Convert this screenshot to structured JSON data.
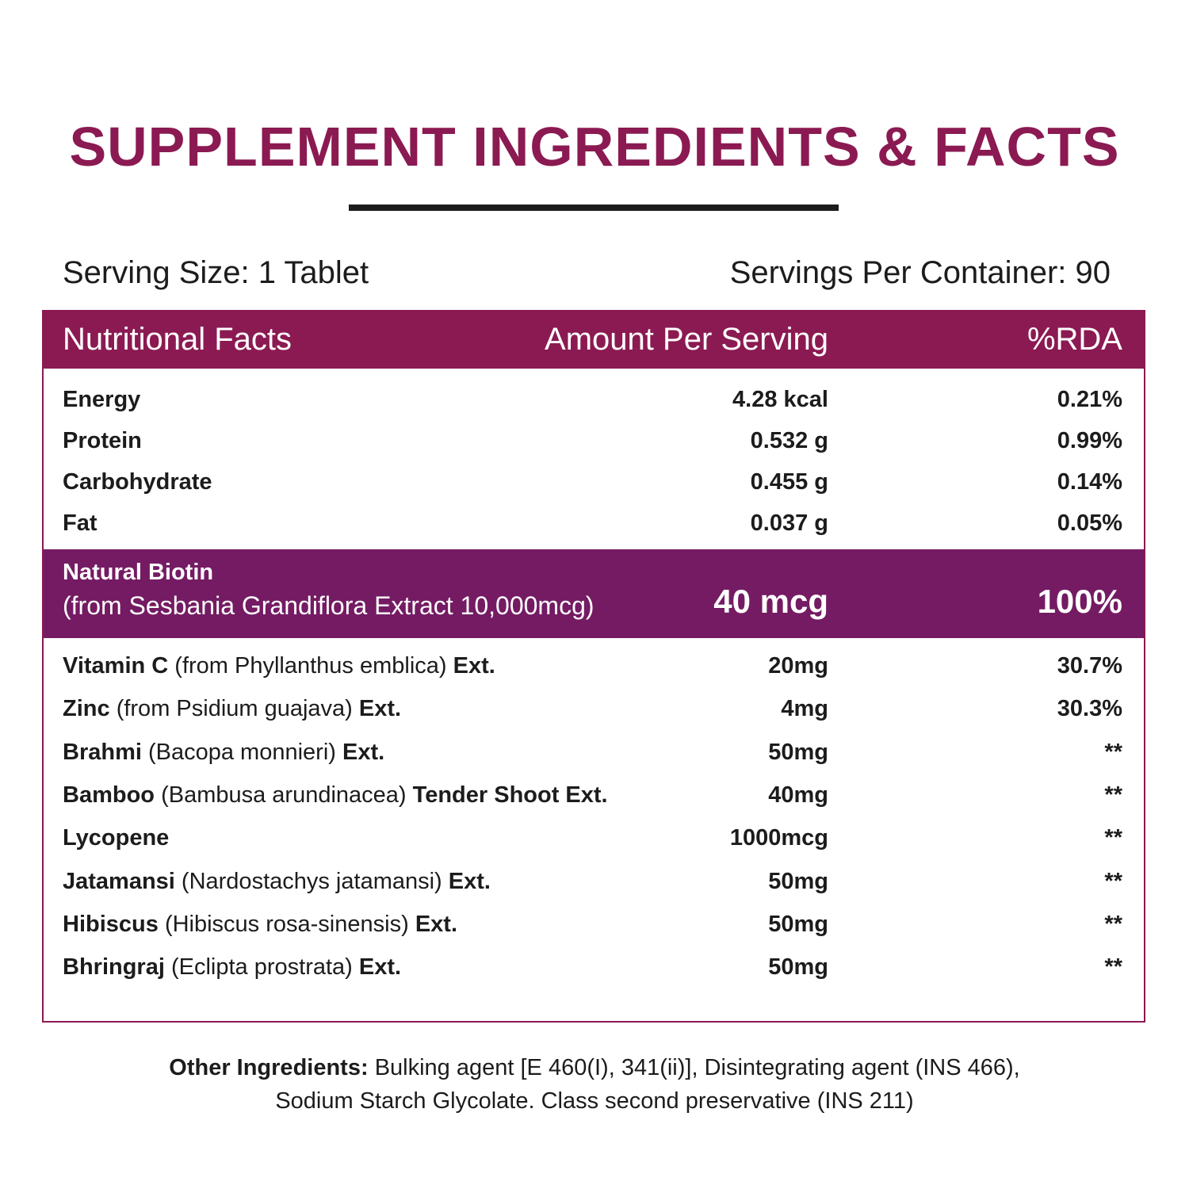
{
  "header": {
    "title": "SUPPLEMENT INGREDIENTS & FACTS"
  },
  "serving": {
    "size": "Serving Size: 1 Tablet",
    "per_container": "Servings Per Container: 90"
  },
  "table": {
    "columns": [
      "Nutritional Facts",
      "Amount Per Serving",
      "%RDA"
    ],
    "nutrients": [
      [
        "Energy",
        "4.28 kcal",
        "0.21%"
      ],
      [
        "Protein",
        "0.532 g",
        "0.99%"
      ],
      [
        "Carbohydrate",
        "0.455 g",
        "0.14%"
      ],
      [
        "Fat",
        "0.037 g",
        "0.05%"
      ]
    ],
    "highlight": {
      "name": "Natural Biotin",
      "source": "(from Sesbania Grandiflora Extract 10,000mcg)",
      "amount": "40 mcg",
      "rda": "100%"
    },
    "ingredients": [
      {
        "name": [
          "Vitamin C",
          "(from Phyllanthus emblica)",
          "Ext."
        ],
        "amount": "20mg",
        "rda": "30.7%"
      },
      {
        "name": [
          "Zinc",
          "(from Psidium guajava)",
          "Ext."
        ],
        "amount": "4mg",
        "rda": "30.3%"
      },
      {
        "name": [
          "Brahmi",
          "(Bacopa monnieri)",
          "Ext."
        ],
        "amount": "50mg",
        "rda": "**"
      },
      {
        "name": [
          "Bamboo",
          "(Bambusa arundinacea)",
          "Tender Shoot Ext."
        ],
        "amount": "40mg",
        "rda": "**"
      },
      {
        "name": [
          "Lycopene"
        ],
        "amount": "1000mcg",
        "rda": "**"
      },
      {
        "name": [
          "Jatamansi",
          "(Nardostachys jatamansi)",
          "Ext."
        ],
        "amount": "50mg",
        "rda": "**"
      },
      {
        "name": [
          "Hibiscus",
          "(Hibiscus rosa-sinensis)",
          "Ext."
        ],
        "amount": "50mg",
        "rda": "**"
      },
      {
        "name": [
          "Bhringraj",
          "(Eclipta prostrata)",
          "Ext."
        ],
        "amount": "50mg",
        "rda": "**"
      }
    ]
  },
  "footer": {
    "label": "Other Ingredients:",
    "lines": [
      "Bulking agent [E 460(I), 341(ii)], Disintegrating agent (INS 466),",
      "Sodium Starch Glycolate. Class second preservative (INS 211)"
    ]
  }
}
